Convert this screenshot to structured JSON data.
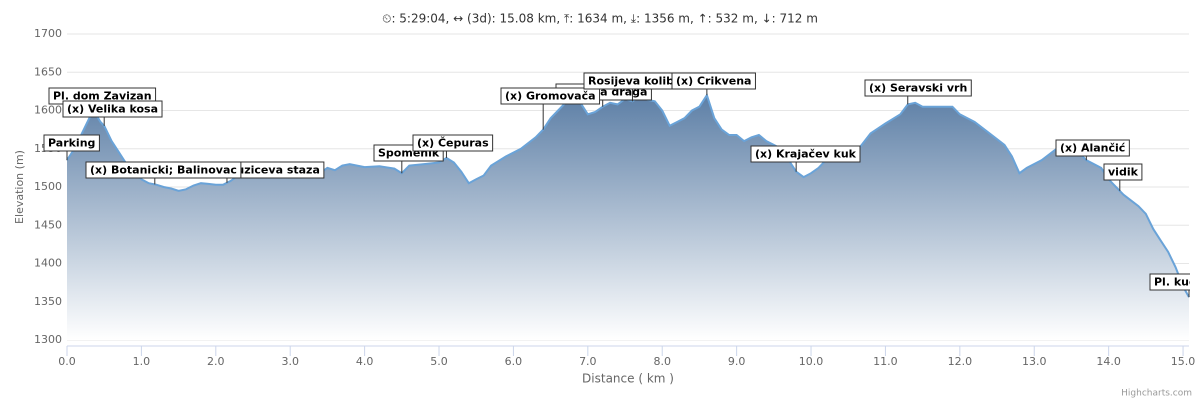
{
  "chart_data": {
    "type": "area",
    "title": "⏲: 5:29:04, ↔ (3d): 15.08 km, ⤒: 1634 m, ⤓: 1356 m, ↑: 532 m, ↓: 712 m",
    "x_label": "Distance ( km )",
    "y_label": "Elevation (m)",
    "credits": "Highcharts.com",
    "color": "#6aa3d8",
    "fill_top": "#5d7fa6",
    "fill_bottom": "#ffffff",
    "grid": true,
    "x": [
      0.0,
      0.1,
      0.2,
      0.3,
      0.37,
      0.45,
      0.5,
      0.6,
      0.7,
      0.8,
      0.9,
      1.0,
      1.1,
      1.2,
      1.3,
      1.4,
      1.5,
      1.6,
      1.7,
      1.8,
      1.9,
      2.0,
      2.1,
      2.2,
      2.3,
      2.5,
      2.7,
      2.9,
      3.1,
      3.2,
      3.4,
      3.5,
      3.6,
      3.7,
      3.8,
      4.0,
      4.2,
      4.4,
      4.5,
      4.6,
      4.8,
      5.0,
      5.1,
      5.2,
      5.3,
      5.4,
      5.5,
      5.6,
      5.7,
      5.9,
      6.1,
      6.3,
      6.4,
      6.5,
      6.6,
      6.7,
      6.8,
      6.9,
      7.0,
      7.1,
      7.2,
      7.3,
      7.4,
      7.5,
      7.6,
      7.7,
      7.8,
      7.9,
      8.0,
      8.1,
      8.2,
      8.3,
      8.4,
      8.5,
      8.6,
      8.7,
      8.8,
      8.9,
      9.0,
      9.1,
      9.2,
      9.3,
      9.4,
      9.5,
      9.6,
      9.7,
      9.8,
      9.9,
      10.0,
      10.1,
      10.2,
      10.4,
      10.6,
      10.8,
      11.0,
      11.2,
      11.3,
      11.4,
      11.5,
      11.7,
      11.9,
      12.0,
      12.2,
      12.4,
      12.6,
      12.7,
      12.8,
      12.9,
      13.1,
      13.3,
      13.5,
      13.6,
      13.7,
      13.9,
      14.0,
      14.2,
      14.4,
      14.5,
      14.6,
      14.7,
      14.8,
      14.9,
      15.0,
      15.08
    ],
    "values": [
      1535,
      1550,
      1570,
      1590,
      1598,
      1585,
      1580,
      1560,
      1545,
      1530,
      1520,
      1510,
      1505,
      1503,
      1500,
      1498,
      1495,
      1497,
      1502,
      1505,
      1504,
      1503,
      1503,
      1508,
      1515,
      1522,
      1525,
      1522,
      1525,
      1520,
      1518,
      1525,
      1522,
      1528,
      1530,
      1526,
      1527,
      1524,
      1518,
      1528,
      1530,
      1532,
      1538,
      1532,
      1520,
      1505,
      1510,
      1515,
      1528,
      1540,
      1550,
      1565,
      1575,
      1590,
      1600,
      1610,
      1612,
      1610,
      1595,
      1598,
      1605,
      1610,
      1608,
      1615,
      1612,
      1618,
      1614,
      1612,
      1600,
      1580,
      1585,
      1590,
      1600,
      1605,
      1620,
      1590,
      1575,
      1568,
      1568,
      1560,
      1565,
      1568,
      1560,
      1555,
      1550,
      1535,
      1520,
      1513,
      1518,
      1525,
      1535,
      1540,
      1545,
      1570,
      1583,
      1595,
      1608,
      1610,
      1605,
      1605,
      1605,
      1595,
      1585,
      1570,
      1555,
      1540,
      1518,
      1525,
      1535,
      1550,
      1550,
      1545,
      1535,
      1525,
      1510,
      1490,
      1475,
      1465,
      1445,
      1430,
      1415,
      1395,
      1370,
      1356
    ],
    "xlim": [
      0,
      15.08
    ],
    "ylim": [
      1300,
      1700
    ],
    "xticks": [
      {
        "value": 0,
        "label": "0.0"
      },
      {
        "value": 1,
        "label": "1.0"
      },
      {
        "value": 2,
        "label": "2.0"
      },
      {
        "value": 3,
        "label": "3.0"
      },
      {
        "value": 4,
        "label": "4.0"
      },
      {
        "value": 5,
        "label": "5.0"
      },
      {
        "value": 6,
        "label": "6.0"
      },
      {
        "value": 7,
        "label": "7.0"
      },
      {
        "value": 8,
        "label": "8.0"
      },
      {
        "value": 9,
        "label": "9.0"
      },
      {
        "value": 10,
        "label": "10.0"
      },
      {
        "value": 11,
        "label": "11.0"
      },
      {
        "value": 12,
        "label": "12.0"
      },
      {
        "value": 13,
        "label": "13.0"
      },
      {
        "value": 14,
        "label": "14.0"
      },
      {
        "value": 15,
        "label": "15.0"
      }
    ],
    "yticks": [
      1300,
      1350,
      1400,
      1450,
      1500,
      1550,
      1600,
      1650,
      1700
    ],
    "annotations": [
      {
        "x": 0.0,
        "label": "Parking"
      },
      {
        "x": 0.37,
        "label": "Pl. dom Zavizan"
      },
      {
        "x": 0.5,
        "label": "(x) Velika kosa"
      },
      {
        "x": 2.15,
        "label": "Premuziceva staza"
      },
      {
        "x": 1.18,
        "label": "(x) Botanicki; Balinovac"
      },
      {
        "x": 4.5,
        "label": "Spomenik"
      },
      {
        "x": 5.1,
        "label": "(x) Čepuras"
      },
      {
        "x": 7.2,
        "label": "Skrbina draga"
      },
      {
        "x": 6.4,
        "label": "(x) Gromovača"
      },
      {
        "x": 7.6,
        "label": "Rosijeva koliba"
      },
      {
        "x": 8.6,
        "label": "(x) Crikvena"
      },
      {
        "x": 9.8,
        "label": "(x) Krajačev kuk"
      },
      {
        "x": 11.3,
        "label": "(x) Seravski vrh"
      },
      {
        "x": 13.7,
        "label": "(x) Alančić"
      },
      {
        "x": 14.15,
        "label": "vidik"
      },
      {
        "x": 15.08,
        "label": "Pl. kuća"
      }
    ]
  }
}
